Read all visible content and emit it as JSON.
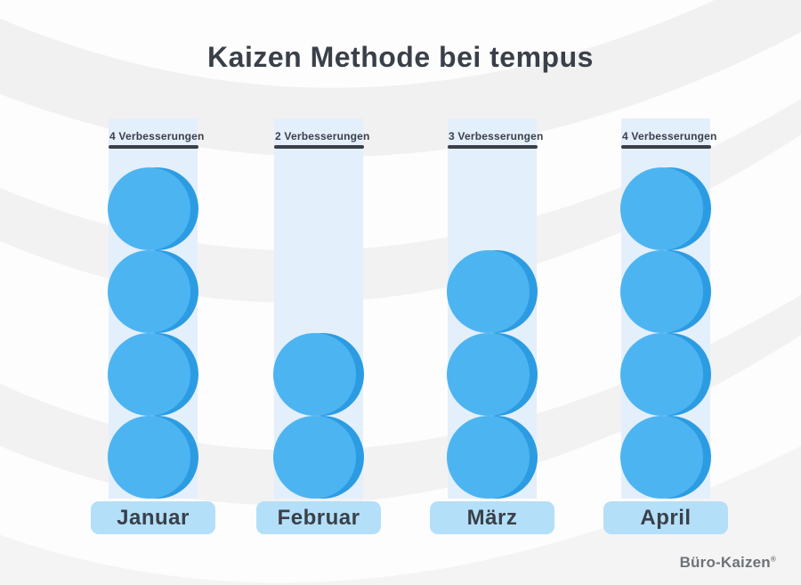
{
  "title": "Kaizen Methode bei tempus",
  "brand": {
    "name": "Büro-Kaizen",
    "mark": "®"
  },
  "chart_data": {
    "type": "bar",
    "title": "Kaizen Methode bei tempus",
    "categories": [
      "Januar",
      "Februar",
      "März",
      "April"
    ],
    "values": [
      4,
      2,
      3,
      4
    ],
    "unit": "Verbesserungen",
    "value_labels": [
      "4 Verbesserungen",
      "2 Verbesserungen",
      "3 Verbesserungen",
      "4 Verbesserungen"
    ],
    "ylim": [
      0,
      4
    ],
    "grid": false,
    "legend": "none",
    "orientation": "vertical",
    "marker": "stacked-circles"
  },
  "colors": {
    "circle": "#4db4f2",
    "circle_shadow": "#2c9ce2",
    "column_bg": "#e4effc",
    "pill_bg": "#b4dff8",
    "text_dark": "#3a4049",
    "underline": "#3a4049",
    "logo_gray": "#6d7278"
  }
}
